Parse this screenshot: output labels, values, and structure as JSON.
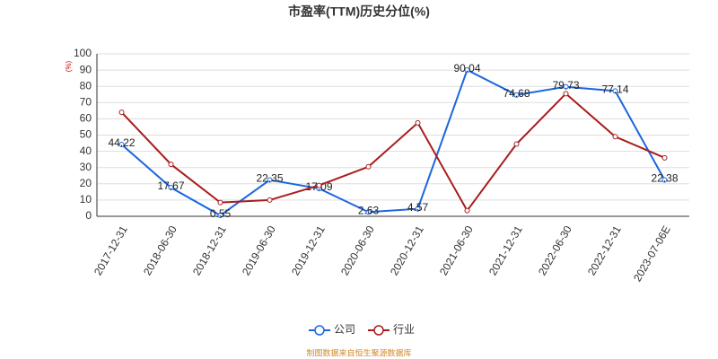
{
  "chart_data": {
    "type": "line",
    "title": "市盈率(TTM)历史分位(%)",
    "y_label": "(%)",
    "source": "制图数据来自恒生聚源数据库",
    "categories": [
      "2017-12-31",
      "2018-06-30",
      "2018-12-31",
      "2019-06-30",
      "2019-12-31",
      "2020-06-30",
      "2020-12-31",
      "2021-06-30",
      "2021-12-31",
      "2022-06-30",
      "2022-12-31",
      "2023-07-06E"
    ],
    "series": [
      {
        "name": "公司",
        "color": "#1a66e0",
        "values": [
          44.22,
          17.67,
          0.55,
          22.35,
          17.09,
          2.63,
          4.57,
          90.04,
          74.68,
          79.73,
          77.14,
          22.38
        ],
        "show_labels": true
      },
      {
        "name": "行业",
        "color": "#a81c1c",
        "values": [
          64,
          32,
          8.5,
          10,
          19,
          30.5,
          57.5,
          3.5,
          44.5,
          75.5,
          49,
          36
        ],
        "show_labels": false
      }
    ],
    "ylim": [
      0,
      100
    ],
    "yticks": [
      0,
      10,
      20,
      30,
      40,
      50,
      60,
      70,
      80,
      90,
      100
    ],
    "grid": true
  }
}
